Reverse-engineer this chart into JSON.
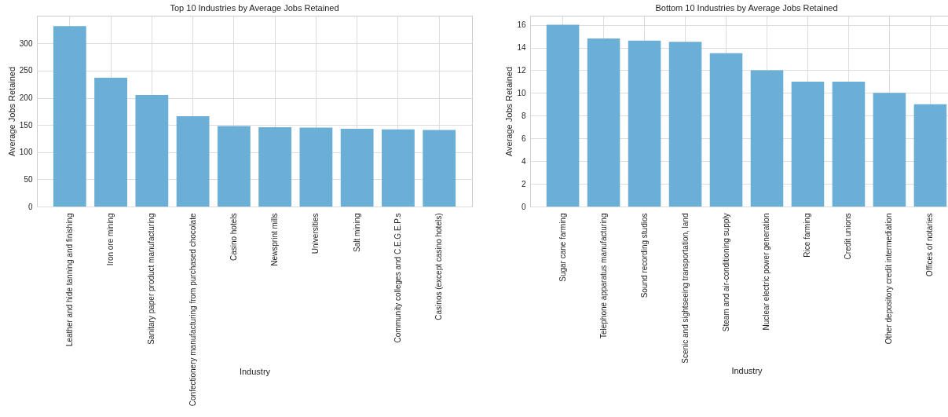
{
  "chart_data": [
    {
      "type": "bar",
      "title": "Top 10 Industries by Average Jobs Retained",
      "xlabel": "Industry",
      "ylabel": "Average Jobs Retained",
      "categories": [
        "Leather and hide tanning and finishing",
        "Iron ore mining",
        "Sanitary paper product manufacturing",
        "Confectionery manufacturing from purchased chocolate",
        "Casino hotels",
        "Newsprint mills",
        "Universities",
        "Salt mining",
        "Community colleges and C.E.G.E.P.s",
        "Casinos (except casino hotels)"
      ],
      "values": [
        332,
        237,
        205,
        166,
        148,
        146,
        145,
        143,
        142,
        141
      ],
      "color": "#6baed6",
      "ylim": [
        0,
        351
      ],
      "yticks": [
        0,
        50,
        100,
        150,
        200,
        250,
        300
      ],
      "grid": true
    },
    {
      "type": "bar",
      "title": "Bottom 10 Industries by Average Jobs Retained",
      "xlabel": "Industry",
      "ylabel": "Average Jobs Retained",
      "categories": [
        "Sugar cane farming",
        "Telephone apparatus manufacturing",
        "Sound recording studios",
        "Scenic and sightseeing transportation, land",
        "Steam and air-conditioning supply",
        "Nuclear electric power generation",
        "Rice farming",
        "Credit unions",
        "Other depository credit intermediation",
        "Offices of notaries"
      ],
      "values": [
        16,
        14.8,
        14.6,
        14.5,
        13.5,
        12,
        11,
        11,
        10,
        9
      ],
      "color": "#6baed6",
      "ylim": [
        0,
        16.8
      ],
      "yticks": [
        0,
        2,
        4,
        6,
        8,
        10,
        12,
        14,
        16
      ],
      "grid": true
    }
  ]
}
